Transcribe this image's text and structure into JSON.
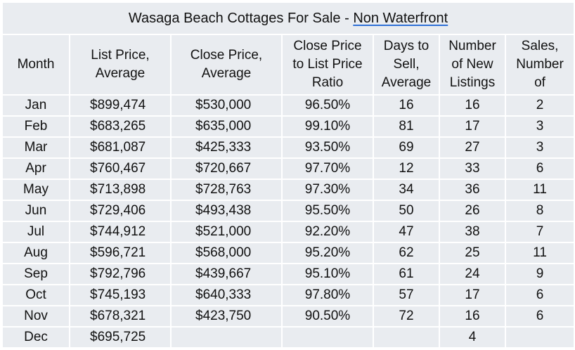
{
  "table": {
    "title_main": "Wasaga Beach Cottages For Sale - ",
    "title_link": "Non Waterfront",
    "headers": [
      [
        "Month"
      ],
      [
        "List Price,",
        "Average"
      ],
      [
        "Close Price,",
        "Average"
      ],
      [
        "Close Price",
        "to List Price",
        "Ratio"
      ],
      [
        "Days to",
        "Sell,",
        "Average"
      ],
      [
        "Number",
        "of New",
        "Listings"
      ],
      [
        "Sales,",
        "Number",
        "of"
      ]
    ],
    "rows": [
      [
        "Jan",
        "$899,474",
        "$530,000",
        "96.50%",
        "16",
        "16",
        "2"
      ],
      [
        "Feb",
        "$683,265",
        "$635,000",
        "99.10%",
        "81",
        "17",
        "3"
      ],
      [
        "Mar",
        "$681,087",
        "$425,333",
        "93.50%",
        "69",
        "27",
        "3"
      ],
      [
        "Apr",
        "$760,467",
        "$720,667",
        "97.70%",
        "12",
        "33",
        "6"
      ],
      [
        "May",
        "$713,898",
        "$728,763",
        "97.30%",
        "34",
        "36",
        "11"
      ],
      [
        "Jun",
        "$729,406",
        "$493,438",
        "95.50%",
        "50",
        "26",
        "8"
      ],
      [
        "Jul",
        "$744,912",
        "$521,000",
        "92.20%",
        "47",
        "38",
        "7"
      ],
      [
        "Aug",
        "$596,721",
        "$568,000",
        "95.20%",
        "62",
        "25",
        "11"
      ],
      [
        "Sep",
        "$792,796",
        "$439,667",
        "95.10%",
        "61",
        "24",
        "9"
      ],
      [
        "Oct",
        "$745,193",
        "$640,333",
        "97.80%",
        "57",
        "17",
        "6"
      ],
      [
        "Nov",
        "$678,321",
        "$423,750",
        "90.50%",
        "72",
        "16",
        "6"
      ],
      [
        "Dec",
        "$695,725",
        "",
        "",
        "",
        "4",
        ""
      ]
    ]
  }
}
